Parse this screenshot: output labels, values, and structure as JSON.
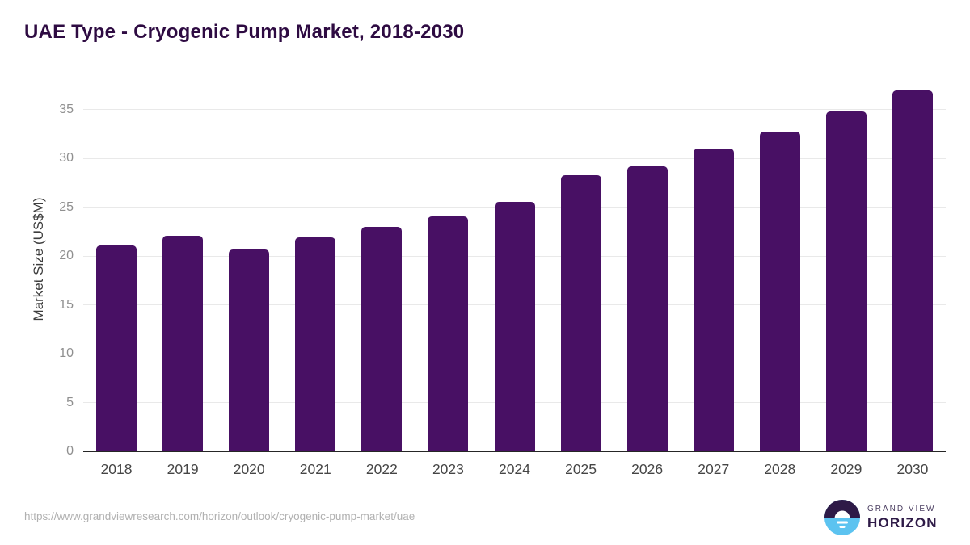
{
  "header": {
    "title": "UAE Type - Cryogenic Pump Market, 2018-2030"
  },
  "chart_data": {
    "type": "bar",
    "title": "UAE Type - Cryogenic Pump Market, 2018-2030",
    "categories": [
      "2018",
      "2019",
      "2020",
      "2021",
      "2022",
      "2023",
      "2024",
      "2025",
      "2026",
      "2027",
      "2028",
      "2029",
      "2030"
    ],
    "values": [
      21.1,
      22.1,
      20.7,
      21.9,
      23.0,
      24.1,
      25.6,
      28.3,
      29.2,
      31.0,
      32.8,
      34.8,
      37.0
    ],
    "xlabel": "",
    "ylabel": "Market Size (US$M)",
    "ylim": [
      0,
      38.3
    ],
    "yticks": [
      0,
      5,
      10,
      15,
      20,
      25,
      30,
      35
    ],
    "grid": true,
    "legend_position": "none",
    "bar_color": "#481064"
  },
  "footer": {
    "source_url": "https://www.grandviewresearch.com/horizon/outlook/cryogenic-pump-market/uae",
    "logo": {
      "brand_line1": "GRAND VIEW",
      "brand_line2": "HORIZON"
    }
  },
  "colors": {
    "background": "#ffffff",
    "bar": "#481064",
    "title": "#2e0b42",
    "axis_line": "#262626",
    "gridline": "#e9e9e9",
    "tick_label": "#8f8f8f",
    "year_label": "#454545",
    "ylabel": "#3d3d3d",
    "url": "#b1b1b1",
    "logo_purple": "#2e1a47",
    "logo_blue": "#5cc3f0"
  }
}
